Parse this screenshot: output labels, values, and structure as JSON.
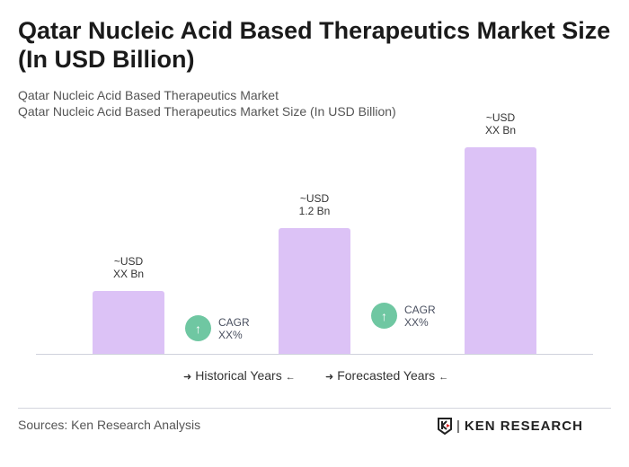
{
  "title": "Qatar Nucleic Acid Based Therapeutics Market Size (In USD Billion)",
  "subtitle1": "Qatar Nucleic Acid Based Therapeutics Market",
  "subtitle2": "Qatar Nucleic Acid Based Therapeutics Market Size (In USD Billion)",
  "chart_data": {
    "type": "bar",
    "bar_color": "#dcc2f6",
    "bars": [
      {
        "label_line1": "~USD",
        "label_line2": "XX Bn",
        "value": null
      },
      {
        "label_line1": "~USD",
        "label_line2": "1.2 Bn",
        "value": 1.2
      },
      {
        "label_line1": "~USD",
        "label_line2": "XX Bn",
        "value": null
      }
    ],
    "cagr": [
      {
        "label": "CAGR",
        "value": "XX%"
      },
      {
        "label": "CAGR",
        "value": "XX%"
      }
    ],
    "cagr_color": "#6fc7a2",
    "legend": [
      "Historical Years",
      "Forecasted Years"
    ]
  },
  "footer": {
    "source": "Sources: Ken Research Analysis",
    "logo": "KEN RESEARCH"
  }
}
